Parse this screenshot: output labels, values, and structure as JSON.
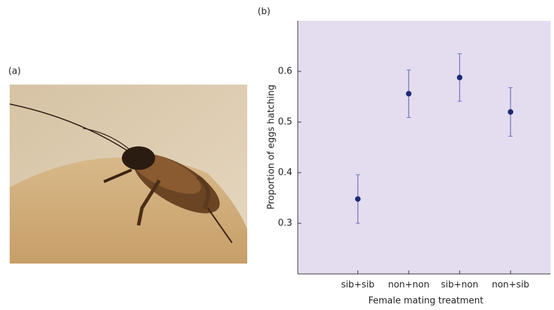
{
  "panel_a": {
    "label": "(a)"
  },
  "chart_data": {
    "type": "scatter",
    "panel_label": "(b)",
    "x_label": "Female mating treatment",
    "y_label": "Proportion of eggs hatching",
    "categories": [
      "sib+sib",
      "non+non",
      "sib+non",
      "non+sib"
    ],
    "series": [
      {
        "color": "#1f2a78",
        "values": [
          0.348,
          0.556,
          0.588,
          0.52
        ],
        "errors": [
          0.048,
          0.047,
          0.047,
          0.048
        ]
      }
    ],
    "ylim": [
      0.2,
      0.7
    ],
    "yticks": [
      0.3,
      0.4,
      0.5,
      0.6
    ],
    "background": "#e4ddf0"
  }
}
